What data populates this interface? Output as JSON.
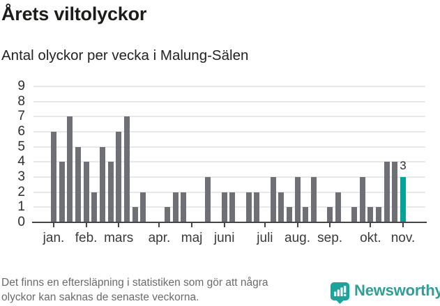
{
  "header": {
    "title": "Årets viltolyckor",
    "subtitle": "Antal olyckor per vecka i Malung-Sälen"
  },
  "chart_data": {
    "type": "bar",
    "title": "Årets viltolyckor",
    "subtitle": "Antal olyckor per vecka i Malung-Sälen",
    "x_unit": "vecka",
    "weeks": [
      1,
      2,
      3,
      4,
      5,
      6,
      7,
      8,
      9,
      10,
      11,
      12,
      13,
      14,
      15,
      16,
      17,
      18,
      19,
      20,
      21,
      22,
      23,
      24,
      25,
      26,
      27,
      28,
      29,
      30,
      31,
      32,
      33,
      34,
      35,
      36,
      37,
      38,
      39,
      40,
      41,
      42,
      43,
      44
    ],
    "values": [
      6,
      4,
      7,
      5,
      4,
      2,
      5,
      4,
      6,
      7,
      1,
      2,
      0,
      0,
      1,
      2,
      2,
      0,
      0,
      3,
      0,
      2,
      2,
      0,
      2,
      2,
      0,
      3,
      2,
      1,
      3,
      1,
      3,
      0,
      1,
      2,
      0,
      1,
      3,
      1,
      1,
      4,
      4,
      3
    ],
    "highlight_index": 43,
    "highlight_label": "3",
    "ylim": [
      0,
      9
    ],
    "yticks": [
      0,
      1,
      2,
      3,
      4,
      5,
      6,
      7,
      8,
      9
    ],
    "month_ticks": [
      {
        "label": "jan.",
        "week": 1
      },
      {
        "label": "feb.",
        "week": 5
      },
      {
        "label": "mars",
        "week": 9
      },
      {
        "label": "apr.",
        "week": 14
      },
      {
        "label": "maj",
        "week": 18
      },
      {
        "label": "juni",
        "week": 22
      },
      {
        "label": "juli",
        "week": 27
      },
      {
        "label": "aug.",
        "week": 31
      },
      {
        "label": "sep.",
        "week": 35
      },
      {
        "label": "okt.",
        "week": 40
      },
      {
        "label": "nov.",
        "week": 44
      }
    ],
    "grid": true,
    "legend": false,
    "colors": {
      "bar": "#6f6f76",
      "highlight": "#00a29a",
      "grid": "#e8e8e8",
      "axis": "#454545"
    }
  },
  "footer": {
    "disclaimer_line1": "Det finns en eftersläpning i statistiken som gör att några",
    "disclaimer_line2": "olyckor kan saknas de senaste veckorna.",
    "brand": "Newsworthy",
    "brand_color": "#2f9e97",
    "icon_color": "#1fa29a"
  }
}
